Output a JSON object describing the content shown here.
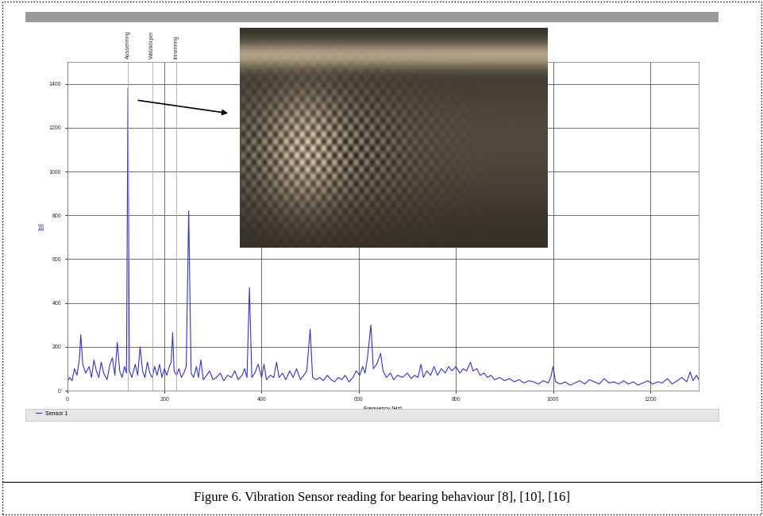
{
  "chart_data": {
    "type": "line",
    "caption": "Figure 6. Vibration Sensor reading for bearing behaviour [8], [10], [16]",
    "x_label": "Frequency [Hz]",
    "y_label": "[g]",
    "x": [
      0,
      5,
      10,
      15,
      20,
      25,
      28,
      32,
      38,
      45,
      50,
      55,
      60,
      65,
      70,
      75,
      82,
      88,
      93,
      98,
      103,
      108,
      113,
      118,
      122,
      125,
      128,
      133,
      140,
      145,
      150,
      155,
      160,
      165,
      170,
      175,
      180,
      185,
      190,
      195,
      200,
      205,
      210,
      214,
      217,
      220,
      225,
      230,
      235,
      240,
      245,
      250,
      255,
      260,
      266,
      270,
      275,
      280,
      287,
      293,
      300,
      307,
      315,
      322,
      330,
      338,
      345,
      352,
      360,
      365,
      370,
      375,
      380,
      386,
      393,
      400,
      405,
      410,
      418,
      425,
      431,
      436,
      443,
      450,
      458,
      465,
      472,
      480,
      487,
      493,
      500,
      505,
      512,
      520,
      527,
      535,
      543,
      550,
      558,
      565,
      572,
      580,
      588,
      595,
      602,
      608,
      613,
      618,
      625,
      630,
      637,
      645,
      650,
      657,
      665,
      672,
      680,
      690,
      700,
      708,
      715,
      722,
      728,
      733,
      740,
      748,
      755,
      762,
      770,
      778,
      785,
      792,
      800,
      808,
      815,
      822,
      830,
      835,
      843,
      850,
      858,
      865,
      872,
      880,
      890,
      900,
      910,
      920,
      930,
      940,
      950,
      960,
      970,
      980,
      990,
      995,
      1000,
      1005,
      1015,
      1025,
      1035,
      1045,
      1055,
      1065,
      1075,
      1085,
      1095,
      1105,
      1115,
      1125,
      1135,
      1145,
      1155,
      1165,
      1175,
      1185,
      1195,
      1205,
      1215,
      1225,
      1235,
      1245,
      1255,
      1265,
      1275,
      1282,
      1288,
      1295,
      1300
    ],
    "series": [
      {
        "name": "Sensor 1",
        "color": "#3333cc",
        "values": [
          40,
          60,
          45,
          100,
          70,
          140,
          255,
          120,
          80,
          110,
          60,
          140,
          90,
          60,
          130,
          80,
          50,
          120,
          150,
          70,
          220,
          90,
          60,
          110,
          80,
          1380,
          90,
          60,
          120,
          70,
          200,
          90,
          60,
          130,
          80,
          60,
          110,
          70,
          120,
          60,
          100,
          70,
          110,
          130,
          265,
          90,
          70,
          100,
          60,
          80,
          110,
          820,
          80,
          60,
          110,
          60,
          140,
          50,
          70,
          90,
          50,
          60,
          80,
          45,
          70,
          60,
          90,
          50,
          70,
          100,
          60,
          470,
          60,
          80,
          120,
          60,
          120,
          50,
          70,
          60,
          130,
          60,
          80,
          50,
          90,
          60,
          100,
          50,
          70,
          90,
          280,
          60,
          50,
          60,
          45,
          70,
          50,
          40,
          60,
          50,
          70,
          40,
          60,
          90,
          70,
          110,
          80,
          150,
          300,
          100,
          120,
          170,
          90,
          60,
          80,
          50,
          70,
          60,
          80,
          55,
          70,
          60,
          120,
          60,
          90,
          70,
          110,
          70,
          100,
          80,
          110,
          90,
          110,
          80,
          100,
          90,
          130,
          90,
          100,
          70,
          80,
          60,
          70,
          50,
          60,
          45,
          55,
          40,
          50,
          35,
          45,
          40,
          30,
          45,
          35,
          60,
          110,
          40,
          30,
          40,
          25,
          35,
          45,
          30,
          50,
          40,
          30,
          55,
          35,
          40,
          30,
          45,
          30,
          40,
          25,
          35,
          45,
          30,
          40,
          35,
          55,
          30,
          45,
          60,
          40,
          85,
          45,
          70,
          50
        ]
      }
    ],
    "xlim": [
      0,
      1300
    ],
    "xticks": [
      0,
      200,
      400,
      600,
      800,
      1000,
      1200
    ],
    "ylim": [
      0,
      1500
    ],
    "yticks": [
      0,
      200,
      400,
      600,
      800,
      1000,
      1200,
      1400
    ],
    "grid": true,
    "legend": "lower left",
    "annotations": [
      {
        "x": 125,
        "text": "Aussenring"
      },
      {
        "x": 175,
        "text": "Wälzkörper"
      },
      {
        "x": 225,
        "text": "Innenring"
      }
    ]
  }
}
